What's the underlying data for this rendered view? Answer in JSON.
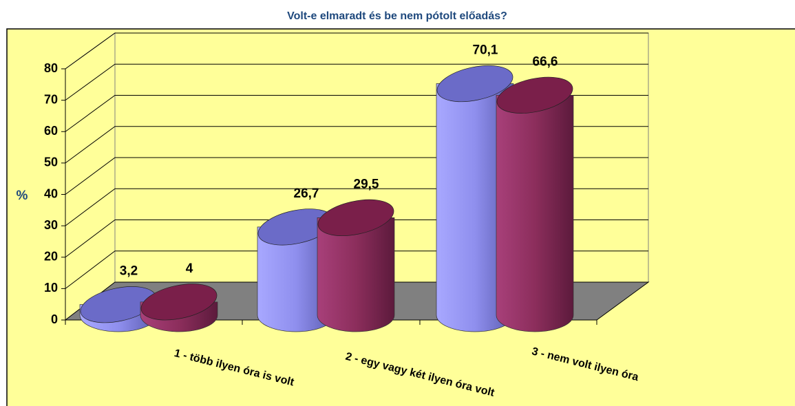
{
  "chart_data": {
    "type": "bar3d",
    "title": "Volt-e elmaradt és be nem pótolt előadás?",
    "y_label": "%",
    "categories": [
      "1 - több ilyen óra is volt",
      "2 - egy vagy két ilyen óra volt",
      "3 - nem volt ilyen óra"
    ],
    "series": [
      {
        "color": "#9999ff",
        "values": [
          3.2,
          26.7,
          70.1
        ],
        "value_labels": [
          "3,2",
          "26,7",
          "70,1"
        ]
      },
      {
        "color": "#993366",
        "values": [
          4,
          29.5,
          66.6
        ],
        "value_labels": [
          "4",
          "29,5",
          "66,6"
        ]
      }
    ],
    "ylim": [
      0,
      80
    ],
    "yticks": [
      0,
      10,
      20,
      30,
      40,
      50,
      60,
      70,
      80
    ],
    "grid": true
  }
}
